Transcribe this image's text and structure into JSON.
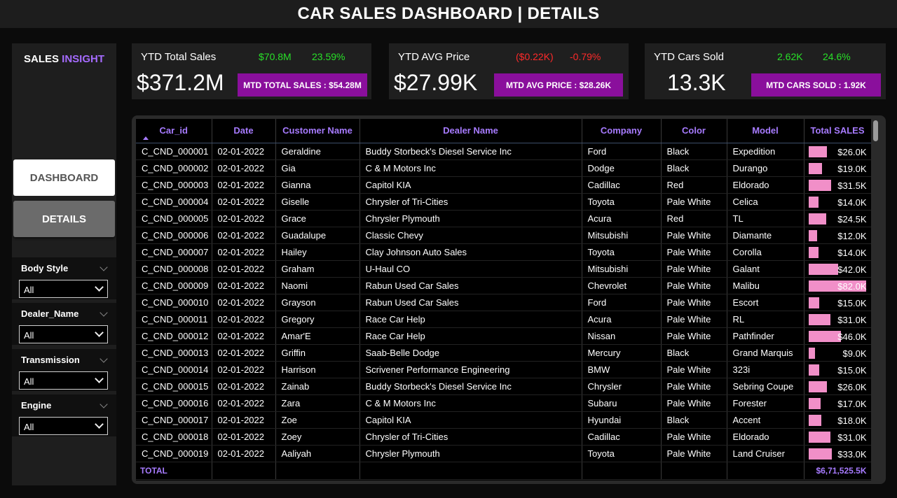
{
  "header": {
    "title": "CAR SALES DASHBOARD | DETAILS"
  },
  "sidebar": {
    "brand_main": "SALES",
    "brand_accent": "INSIGHT",
    "nav": {
      "dashboard": "DASHBOARD",
      "details": "DETAILS"
    },
    "slicers": [
      {
        "label": "Body Style",
        "value": "All"
      },
      {
        "label": "Dealer_Name",
        "value": "All"
      },
      {
        "label": "Transmission",
        "value": "All"
      },
      {
        "label": "Engine",
        "value": "All"
      }
    ]
  },
  "kpis": [
    {
      "title": "YTD Total Sales",
      "value": "$371.2M",
      "change_value": "$70.8M",
      "change_pct": "23.59%",
      "mtd": "MTD TOTAL SALES : $54.28M"
    },
    {
      "title": "YTD AVG Price",
      "value": "$27.99K",
      "change_value": "($0.22K)",
      "change_pct": "-0.79%",
      "mtd": "MTD AVG PRICE : $28.26K"
    },
    {
      "title": "YTD Cars Sold",
      "value": "13.3K",
      "change_value": "2.62K",
      "change_pct": "24.6%",
      "mtd": "MTD CARS SOLD : 1.92K"
    }
  ],
  "colors": {
    "accent": "#a77bff",
    "mtd_badge": "#8a0f9c",
    "positive": "#28e028",
    "negative": "#ff2a2a",
    "bar": "#f18fc8"
  },
  "table": {
    "columns": [
      "Car_id",
      "Date",
      "Customer Name",
      "Dealer Name",
      "Company",
      "Color",
      "Model",
      "Total SALES"
    ],
    "rows": [
      {
        "car_id": "C_CND_000001",
        "date": "02-01-2022",
        "customer": "Geraldine",
        "dealer": "Buddy Storbeck's Diesel Service Inc",
        "company": "Ford",
        "color": "Black",
        "model": "Expedition",
        "sales": "$26.0K",
        "amount": 26000
      },
      {
        "car_id": "C_CND_000002",
        "date": "02-01-2022",
        "customer": "Gia",
        "dealer": "C & M Motors Inc",
        "company": "Dodge",
        "color": "Black",
        "model": "Durango",
        "sales": "$19.0K",
        "amount": 19000
      },
      {
        "car_id": "C_CND_000003",
        "date": "02-01-2022",
        "customer": "Gianna",
        "dealer": "Capitol KIA",
        "company": "Cadillac",
        "color": "Red",
        "model": "Eldorado",
        "sales": "$31.5K",
        "amount": 31500
      },
      {
        "car_id": "C_CND_000004",
        "date": "02-01-2022",
        "customer": "Giselle",
        "dealer": "Chrysler of Tri-Cities",
        "company": "Toyota",
        "color": "Pale White",
        "model": "Celica",
        "sales": "$14.0K",
        "amount": 14000
      },
      {
        "car_id": "C_CND_000005",
        "date": "02-01-2022",
        "customer": "Grace",
        "dealer": "Chrysler Plymouth",
        "company": "Acura",
        "color": "Red",
        "model": "TL",
        "sales": "$24.5K",
        "amount": 24500
      },
      {
        "car_id": "C_CND_000006",
        "date": "02-01-2022",
        "customer": "Guadalupe",
        "dealer": "Classic Chevy",
        "company": "Mitsubishi",
        "color": "Pale White",
        "model": "Diamante",
        "sales": "$12.0K",
        "amount": 12000
      },
      {
        "car_id": "C_CND_000007",
        "date": "02-01-2022",
        "customer": "Hailey",
        "dealer": "Clay Johnson Auto Sales",
        "company": "Toyota",
        "color": "Pale White",
        "model": "Corolla",
        "sales": "$14.0K",
        "amount": 14000
      },
      {
        "car_id": "C_CND_000008",
        "date": "02-01-2022",
        "customer": "Graham",
        "dealer": "U-Haul CO",
        "company": "Mitsubishi",
        "color": "Pale White",
        "model": "Galant",
        "sales": "$42.0K",
        "amount": 42000
      },
      {
        "car_id": "C_CND_000009",
        "date": "02-01-2022",
        "customer": "Naomi",
        "dealer": "Rabun Used Car Sales",
        "company": "Chevrolet",
        "color": "Pale White",
        "model": "Malibu",
        "sales": "$82.0K",
        "amount": 82000
      },
      {
        "car_id": "C_CND_000010",
        "date": "02-01-2022",
        "customer": "Grayson",
        "dealer": "Rabun Used Car Sales",
        "company": "Ford",
        "color": "Pale White",
        "model": "Escort",
        "sales": "$15.0K",
        "amount": 15000
      },
      {
        "car_id": "C_CND_000011",
        "date": "02-01-2022",
        "customer": "Gregory",
        "dealer": "Race Car Help",
        "company": "Acura",
        "color": "Pale White",
        "model": "RL",
        "sales": "$31.0K",
        "amount": 31000
      },
      {
        "car_id": "C_CND_000012",
        "date": "02-01-2022",
        "customer": "Amar'E",
        "dealer": "Race Car Help",
        "company": "Nissan",
        "color": "Pale White",
        "model": "Pathfinder",
        "sales": "$46.0K",
        "amount": 46000
      },
      {
        "car_id": "C_CND_000013",
        "date": "02-01-2022",
        "customer": "Griffin",
        "dealer": "Saab-Belle Dodge",
        "company": "Mercury",
        "color": "Black",
        "model": "Grand Marquis",
        "sales": "$9.0K",
        "amount": 9000
      },
      {
        "car_id": "C_CND_000014",
        "date": "02-01-2022",
        "customer": "Harrison",
        "dealer": "Scrivener Performance Engineering",
        "company": "BMW",
        "color": "Pale White",
        "model": "323i",
        "sales": "$15.0K",
        "amount": 15000
      },
      {
        "car_id": "C_CND_000015",
        "date": "02-01-2022",
        "customer": "Zainab",
        "dealer": "Buddy Storbeck's Diesel Service Inc",
        "company": "Chrysler",
        "color": "Pale White",
        "model": "Sebring Coupe",
        "sales": "$26.0K",
        "amount": 26000
      },
      {
        "car_id": "C_CND_000016",
        "date": "02-01-2022",
        "customer": "Zara",
        "dealer": "C & M Motors Inc",
        "company": "Subaru",
        "color": "Pale White",
        "model": "Forester",
        "sales": "$17.0K",
        "amount": 17000
      },
      {
        "car_id": "C_CND_000017",
        "date": "02-01-2022",
        "customer": "Zoe",
        "dealer": "Capitol KIA",
        "company": "Hyundai",
        "color": "Black",
        "model": "Accent",
        "sales": "$18.0K",
        "amount": 18000
      },
      {
        "car_id": "C_CND_000018",
        "date": "02-01-2022",
        "customer": "Zoey",
        "dealer": "Chrysler of Tri-Cities",
        "company": "Cadillac",
        "color": "Pale White",
        "model": "Eldorado",
        "sales": "$31.0K",
        "amount": 31000
      },
      {
        "car_id": "C_CND_000019",
        "date": "02-01-2022",
        "customer": "Aaliyah",
        "dealer": "Chrysler Plymouth",
        "company": "Toyota",
        "color": "Pale White",
        "model": "Land Cruiser",
        "sales": "$33.0K",
        "amount": 33000
      }
    ],
    "total_label": "TOTAL",
    "total_value": "$6,71,525.5K"
  }
}
